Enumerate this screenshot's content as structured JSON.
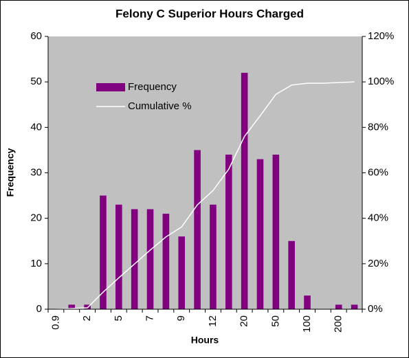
{
  "chart_data": {
    "type": "bar-line",
    "title": "Felony C Superior Hours Charged",
    "x_label": "Hours",
    "y_label": "Frequency",
    "categories": [
      "0.9",
      null,
      "2",
      null,
      "5",
      null,
      "7",
      null,
      "9",
      null,
      "12",
      null,
      "20",
      null,
      "50",
      null,
      "100",
      null,
      "200",
      null
    ],
    "series": [
      {
        "name": "Frequency",
        "type": "bar",
        "color": "#800080",
        "axis": "y",
        "values": [
          0,
          1,
          1,
          25,
          23,
          22,
          22,
          21,
          16,
          35,
          23,
          34,
          52,
          33,
          34,
          15,
          3,
          0,
          1,
          1
        ]
      },
      {
        "name": "Cumulative %",
        "type": "line",
        "color": "#ffffff",
        "axis": "y2",
        "values": [
          0,
          0.3,
          0.6,
          7.5,
          13.8,
          19.9,
          26.0,
          31.8,
          36.2,
          45.9,
          52.2,
          61.6,
          76.0,
          85.1,
          94.5,
          98.6,
          99.4,
          99.4,
          99.7,
          100
        ]
      }
    ],
    "ylim": [
      0,
      60
    ],
    "yticks": [
      0,
      10,
      20,
      30,
      40,
      50,
      60
    ],
    "y2lim": [
      0,
      120
    ],
    "y2ticks": [
      {
        "value": 0,
        "label": "0%"
      },
      {
        "value": 20,
        "label": "20%"
      },
      {
        "value": 40,
        "label": "40%"
      },
      {
        "value": 60,
        "label": "60%"
      },
      {
        "value": 80,
        "label": "80%"
      },
      {
        "value": 100,
        "label": "100%"
      },
      {
        "value": 120,
        "label": "120%"
      }
    ],
    "legend": "upper left",
    "background": "#c0c0c0"
  }
}
